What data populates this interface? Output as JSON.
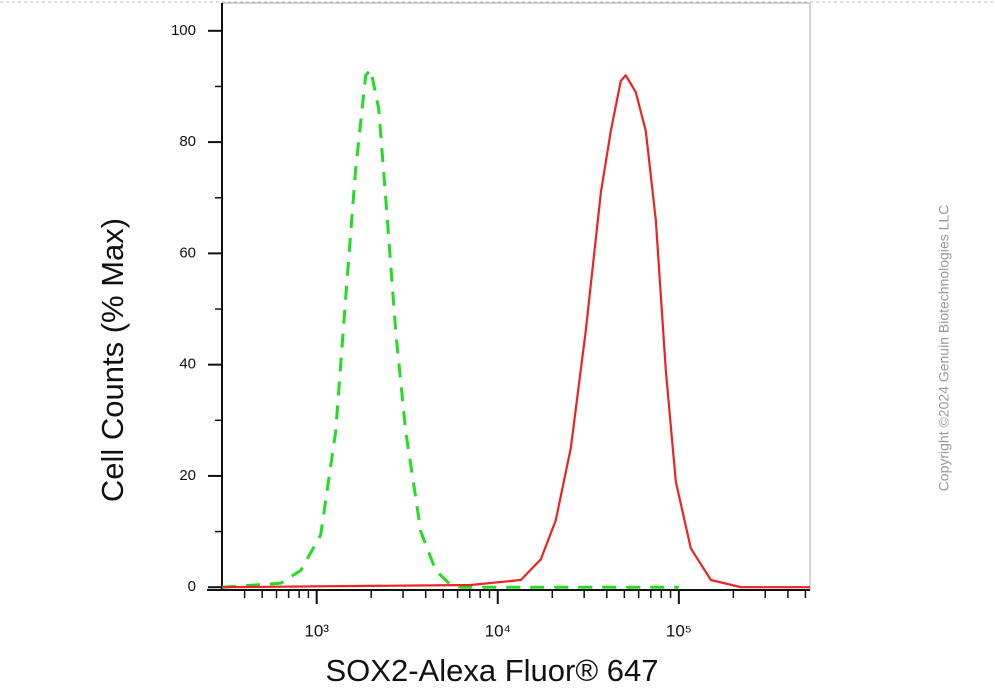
{
  "chart_data": {
    "type": "histogram-line",
    "xlabel": "SOX2-Alexa Fluor® 647",
    "ylabel": "Cell Counts (% Max)",
    "xscale": "log",
    "xlim": [
      300,
      530000
    ],
    "ylim": [
      -0.5,
      105
    ],
    "xticks": [
      {
        "value": 1000,
        "label": "10³"
      },
      {
        "value": 10000,
        "label": "10⁴"
      },
      {
        "value": 100000,
        "label": "10⁵"
      }
    ],
    "xminorticks": [
      400,
      500,
      600,
      700,
      800,
      900,
      2000,
      3000,
      4000,
      5000,
      6000,
      7000,
      8000,
      9000,
      20000,
      30000,
      40000,
      50000,
      60000,
      70000,
      80000,
      90000,
      200000,
      300000,
      400000,
      500000
    ],
    "yticks": [
      0,
      20,
      40,
      60,
      80,
      100
    ],
    "yminorticks": [
      10,
      30,
      50,
      70,
      90
    ],
    "series": [
      {
        "color": "#22dd22",
        "dash": true,
        "x": [
          300,
          632,
          816,
          1052,
          1274,
          1446,
          1641,
          1865,
          1988,
          2201,
          2405,
          2731,
          3102,
          3757,
          4543,
          5497,
          6250,
          100000
        ],
        "values": [
          0,
          0.7,
          3,
          9.4,
          28,
          52,
          75,
          92,
          93,
          86,
          70,
          46,
          28,
          10,
          3,
          0.4,
          0,
          0
        ]
      },
      {
        "color": "#ee2222",
        "dash": false,
        "x": [
          300,
          7096,
          13400,
          17290,
          20900,
          25300,
          30600,
          37100,
          42100,
          47800,
          50900,
          57800,
          65700,
          74600,
          84700,
          96200,
          116400,
          150300,
          220200,
          530000
        ],
        "values": [
          0,
          0.4,
          1.3,
          5,
          12,
          25,
          46,
          71,
          82,
          91,
          92,
          89,
          82,
          66,
          39,
          19,
          7,
          1.3,
          0,
          0
        ]
      }
    ]
  },
  "copyright": "Copyright ©2024 Genuin Biotechnologies LLC"
}
